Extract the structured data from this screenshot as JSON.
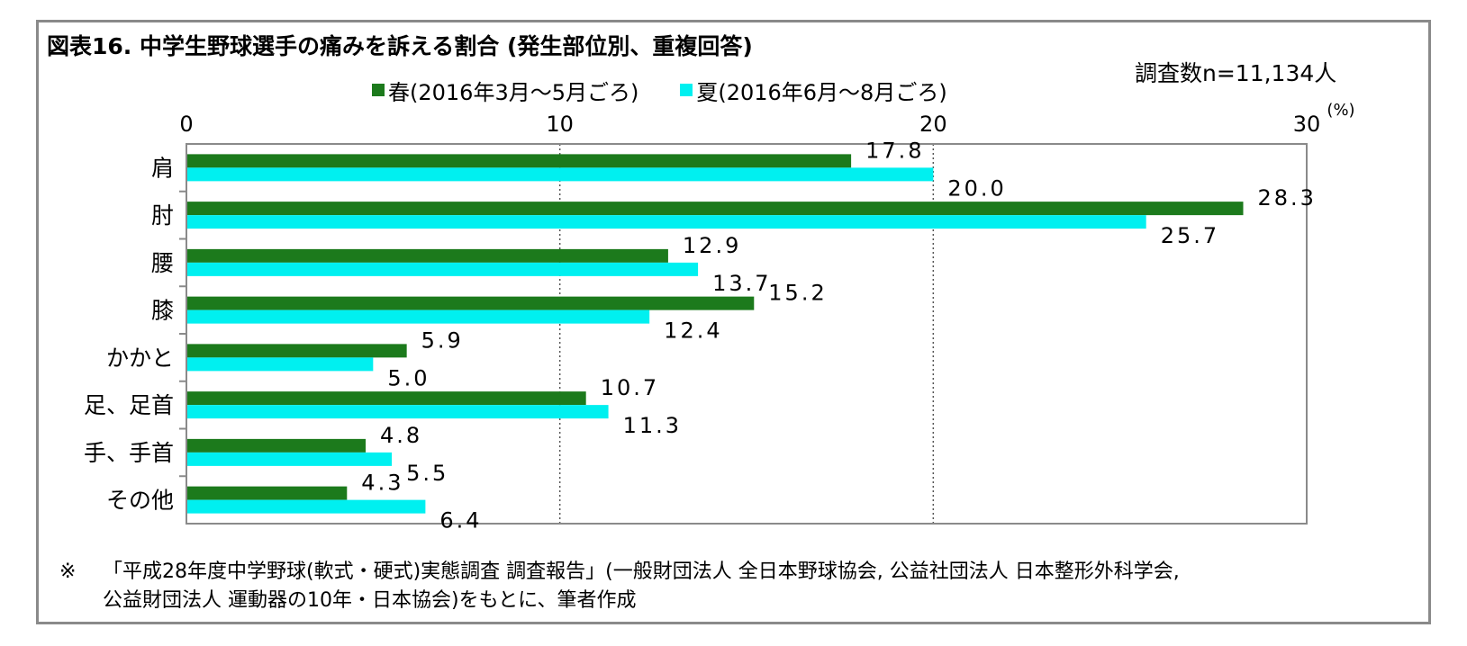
{
  "title": "図表16. 中学生野球選手の痛みを訴える割合 (発生部位別、重複回答)",
  "sample_size": "調査数n=11,134人",
  "unit_label": "(%)",
  "note": {
    "mark": "※",
    "line1": "「平成28年度中学野球(軟式・硬式)実態調査 調査報告」(一般財団法人 全日本野球協会, 公益社団法人 日本整形外科学会,",
    "line2": "公益財団法人 運動器の10年・日本協会)をもとに、筆者作成"
  },
  "colors": {
    "spring": "#1c7a1c",
    "summer": "#00f0f0",
    "grid": "#555555",
    "axis": "#8a8a8a"
  },
  "chart_data": {
    "type": "bar",
    "orientation": "horizontal",
    "categories": [
      "肩",
      "肘",
      "腰",
      "膝",
      "かかと",
      "足、足首",
      "手、手首",
      "その他"
    ],
    "series": [
      {
        "name": "春(2016年3月～5月ごろ)",
        "values": [
          17.8,
          28.3,
          12.9,
          15.2,
          5.9,
          10.7,
          4.8,
          4.3
        ],
        "labels": [
          "17.8",
          "28.3",
          "12.9",
          "15.2",
          "5.9",
          "10.7",
          "4.8",
          "4.3"
        ]
      },
      {
        "name": "夏(2016年6月～8月ごろ)",
        "values": [
          20.0,
          25.7,
          13.7,
          12.4,
          5.0,
          11.3,
          5.5,
          6.4
        ],
        "labels": [
          "20.0",
          "25.7",
          "13.7",
          "12.4",
          "5.0",
          "11.3",
          "5.5",
          "6.4"
        ]
      }
    ],
    "xlim": [
      0,
      30
    ],
    "ticks": [
      0,
      10,
      20,
      30
    ],
    "tick_labels": [
      "0",
      "10",
      "20",
      "30"
    ],
    "grid": "vertical dotted",
    "legend_position": "top"
  }
}
